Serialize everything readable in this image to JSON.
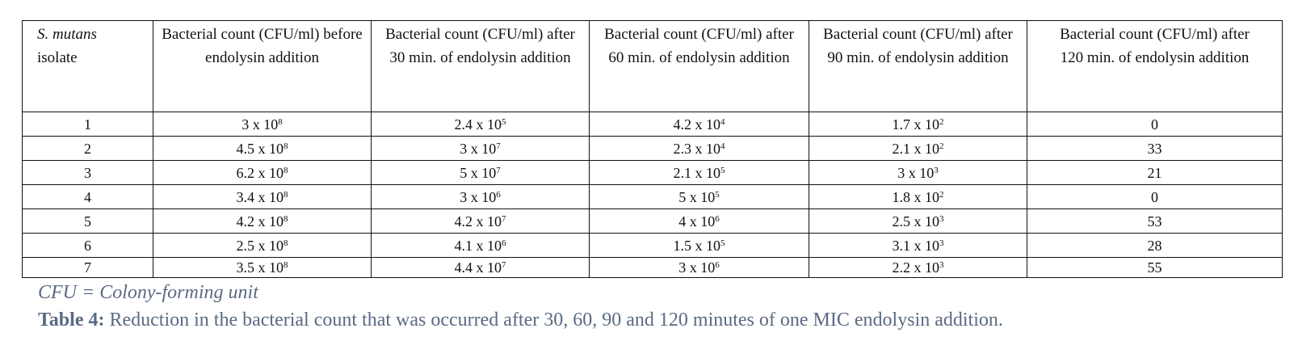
{
  "table": {
    "headers": [
      {
        "italic": "S. mutans",
        "rest": "isolate"
      },
      {
        "text": "Bacterial count (CFU/ml) before endolysin addition"
      },
      {
        "text": "Bacterial count (CFU/ml) after 30 min. of endolysin addition"
      },
      {
        "text": "Bacterial count (CFU/ml) after 60 min. of endolysin addition"
      },
      {
        "text": "Bacterial count (CFU/ml) after 90 min. of endolysin addition"
      },
      {
        "text": "Bacterial count (CFU/ml) after 120 min. of endolysin addition"
      }
    ],
    "rows": [
      {
        "isolate": "1",
        "before": {
          "m": "3 x 10",
          "e": "8"
        },
        "t30": {
          "m": "2.4 x 10",
          "e": "5"
        },
        "t60": {
          "m": "4.2 x 10",
          "e": "4"
        },
        "t90": {
          "m": "1.7 x 10",
          "e": "2"
        },
        "t120": "0"
      },
      {
        "isolate": "2",
        "before": {
          "m": "4.5 x 10",
          "e": "8"
        },
        "t30": {
          "m": "3 x 10",
          "e": "7"
        },
        "t60": {
          "m": "2.3 x 10",
          "e": "4"
        },
        "t90": {
          "m": "2.1 x 10",
          "e": "2"
        },
        "t120": "33"
      },
      {
        "isolate": "3",
        "before": {
          "m": "6.2 x 10",
          "e": "8"
        },
        "t30": {
          "m": "5 x 10",
          "e": "7"
        },
        "t60": {
          "m": "2.1 x 10",
          "e": "5"
        },
        "t90": {
          "m": "3 x 10",
          "e": "3"
        },
        "t120": "21"
      },
      {
        "isolate": "4",
        "before": {
          "m": "3.4 x 10",
          "e": "8"
        },
        "t30": {
          "m": "3 x 10",
          "e": "6"
        },
        "t60": {
          "m": "5 x 10",
          "e": "5"
        },
        "t90": {
          "m": "1.8 x 10",
          "e": "2"
        },
        "t120": "0"
      },
      {
        "isolate": "5",
        "before": {
          "m": "4.2 x 10",
          "e": "8"
        },
        "t30": {
          "m": "4.2 x 10",
          "e": "7"
        },
        "t60": {
          "m": "4 x 10",
          "e": "6"
        },
        "t90": {
          "m": "2.5 x 10",
          "e": "3"
        },
        "t120": "53"
      },
      {
        "isolate": "6",
        "before": {
          "m": "2.5 x 10",
          "e": "8"
        },
        "t30": {
          "m": "4.1 x 10",
          "e": "6"
        },
        "t60": {
          "m": "1.5 x 10",
          "e": "5"
        },
        "t90": {
          "m": "3.1 x 10",
          "e": "3"
        },
        "t120": "28"
      },
      {
        "isolate": "7",
        "before": {
          "m": "3.5 x 10",
          "e": "8"
        },
        "t30": {
          "m": "4.4 x 10",
          "e": "7"
        },
        "t60": {
          "m": "3 x 10",
          "e": "6"
        },
        "t90": {
          "m": "2.2 x 10",
          "e": "3"
        },
        "t120": "55"
      }
    ]
  },
  "note": "CFU = Colony-forming unit",
  "caption": {
    "label": "Table 4:",
    "text": " Reduction in the bacterial count that was occurred after 30, 60, 90 and 120 minutes of one MIC endolysin addition."
  },
  "colors": {
    "text": "#111111",
    "caption": "#5a6a83"
  }
}
